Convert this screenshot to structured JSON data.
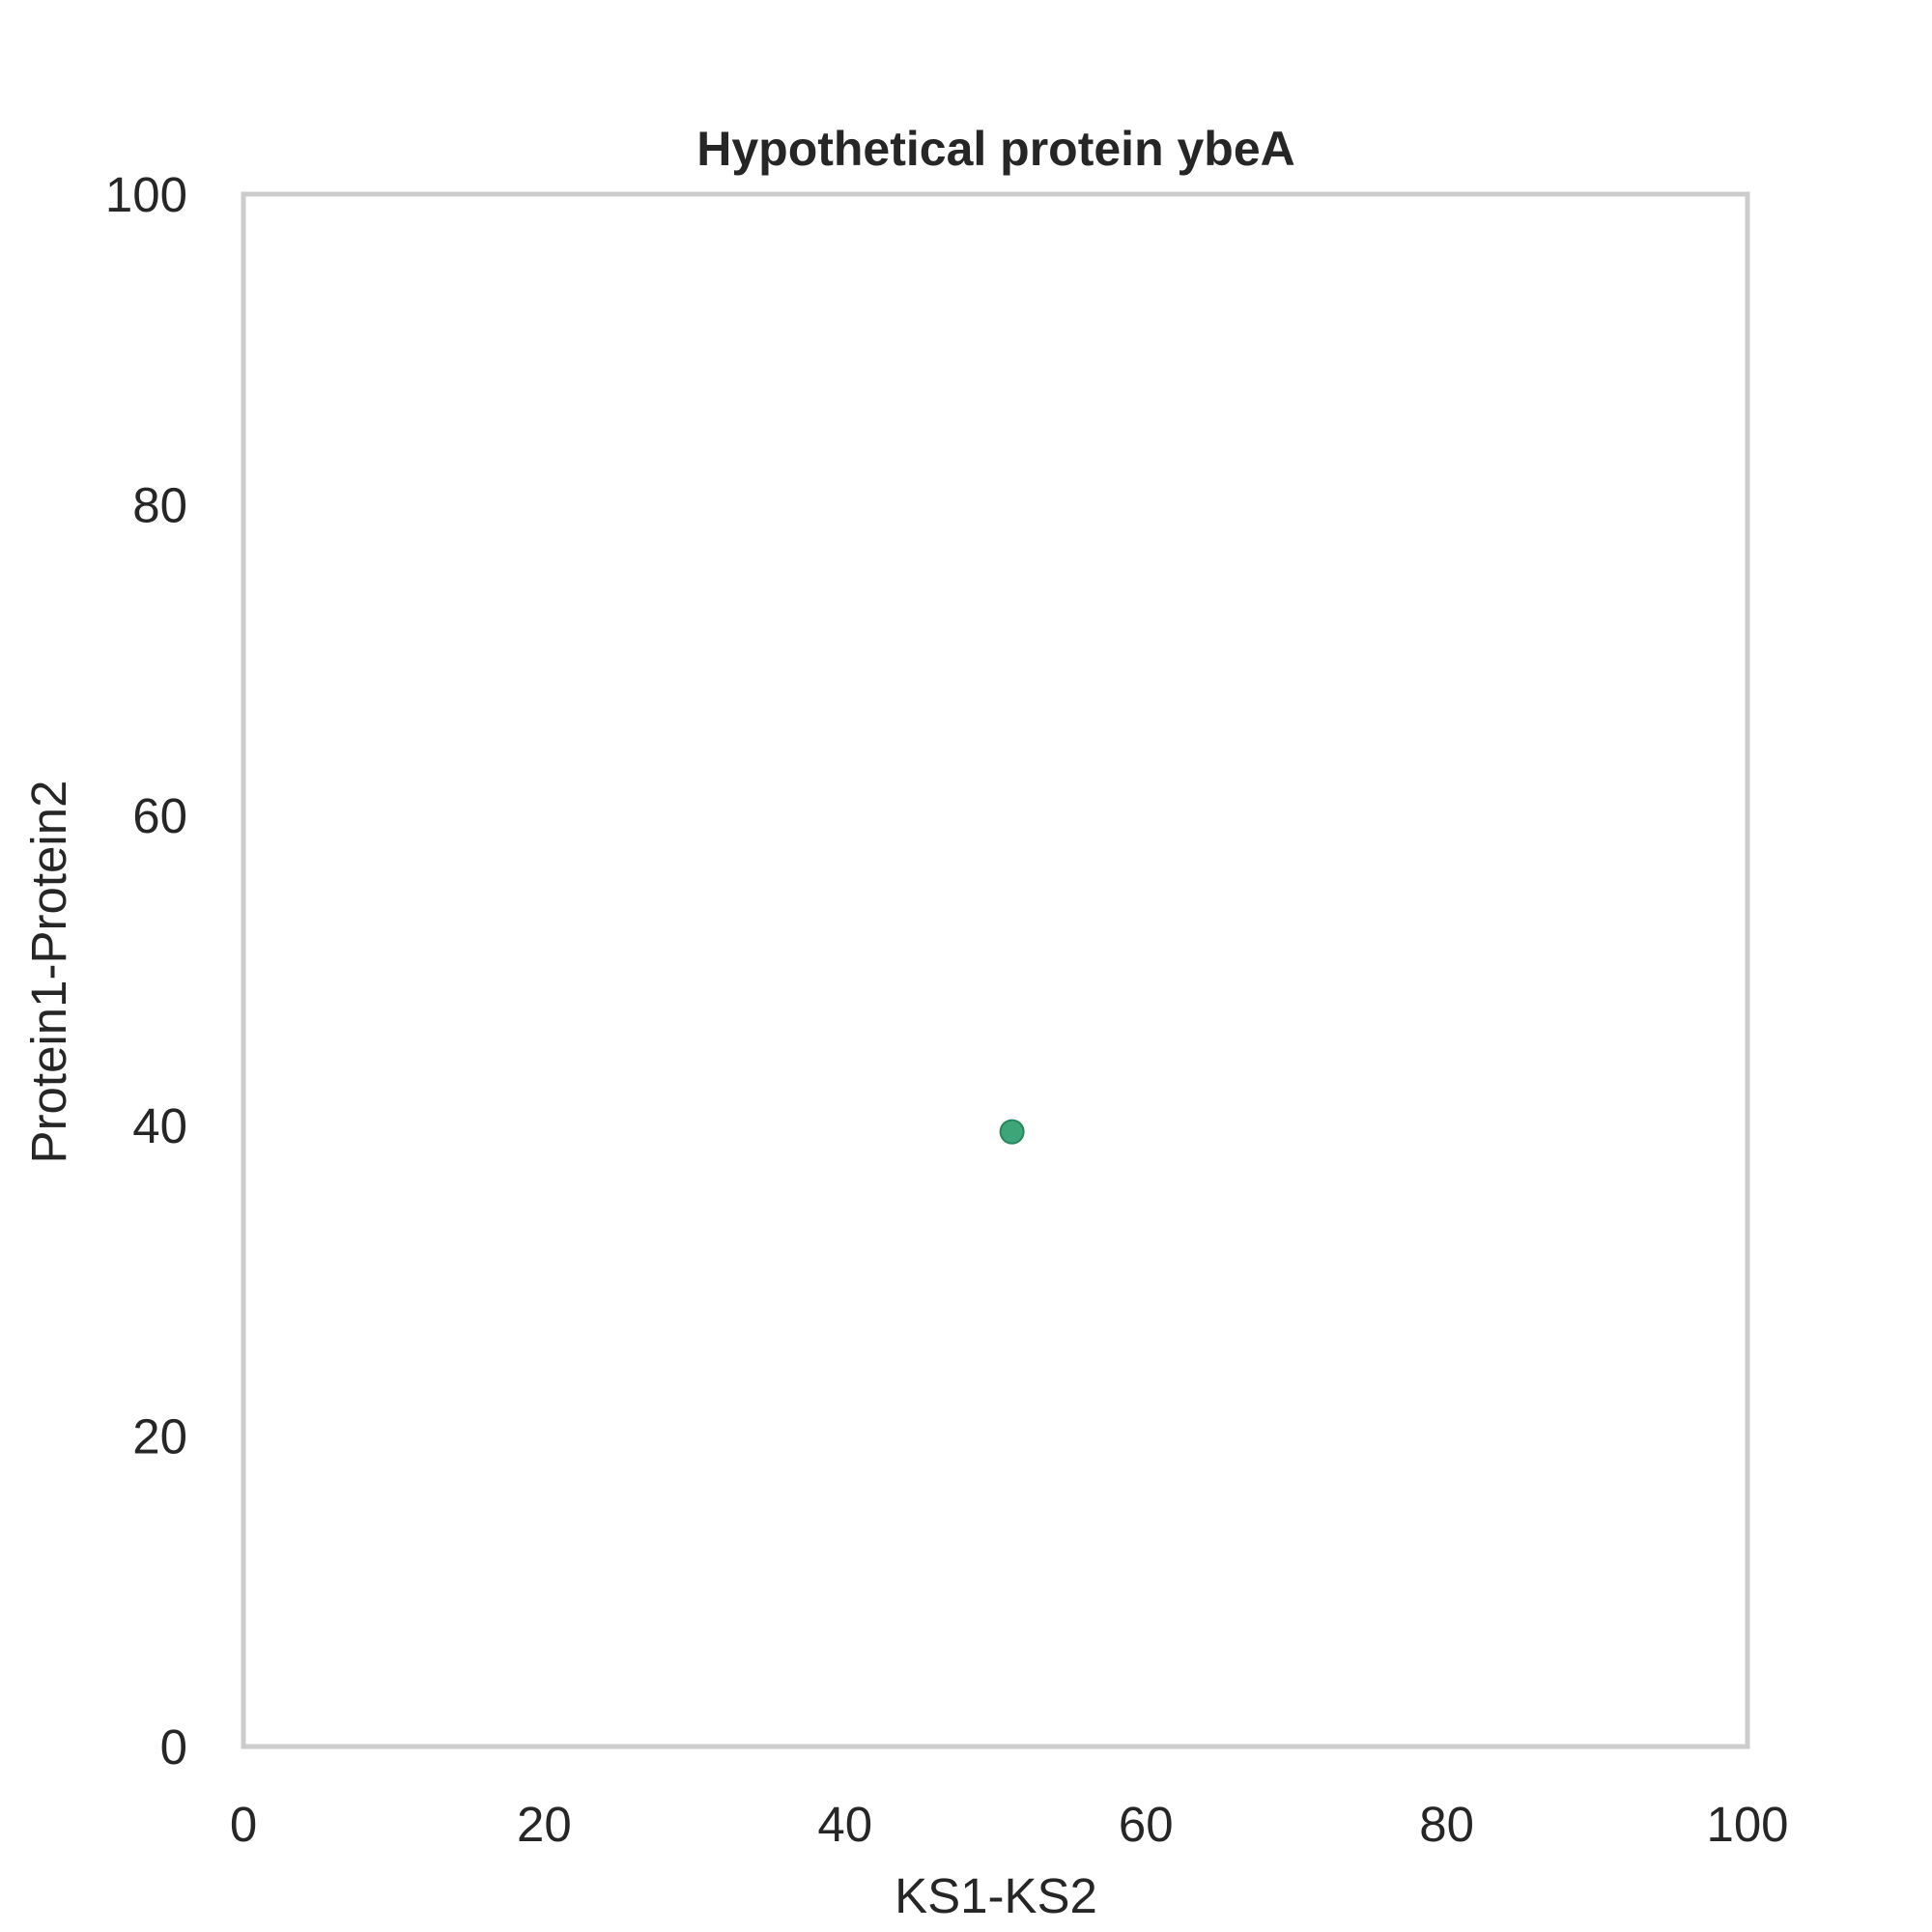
{
  "chart_data": {
    "type": "scatter",
    "title": "Hypothetical protein ybeA",
    "xlabel": "KS1-KS2",
    "ylabel": "Protein1-Protein2",
    "xlim": [
      0,
      100
    ],
    "ylim": [
      0,
      100
    ],
    "xticks": [
      "0",
      "20",
      "40",
      "60",
      "80",
      "100"
    ],
    "yticks": [
      "0",
      "20",
      "40",
      "60",
      "80",
      "100"
    ],
    "grid": false,
    "legend": "none",
    "series": [
      {
        "color": "#2e9d6e",
        "points": [
          {
            "x": 51.1,
            "y": 39.6
          }
        ]
      }
    ]
  }
}
